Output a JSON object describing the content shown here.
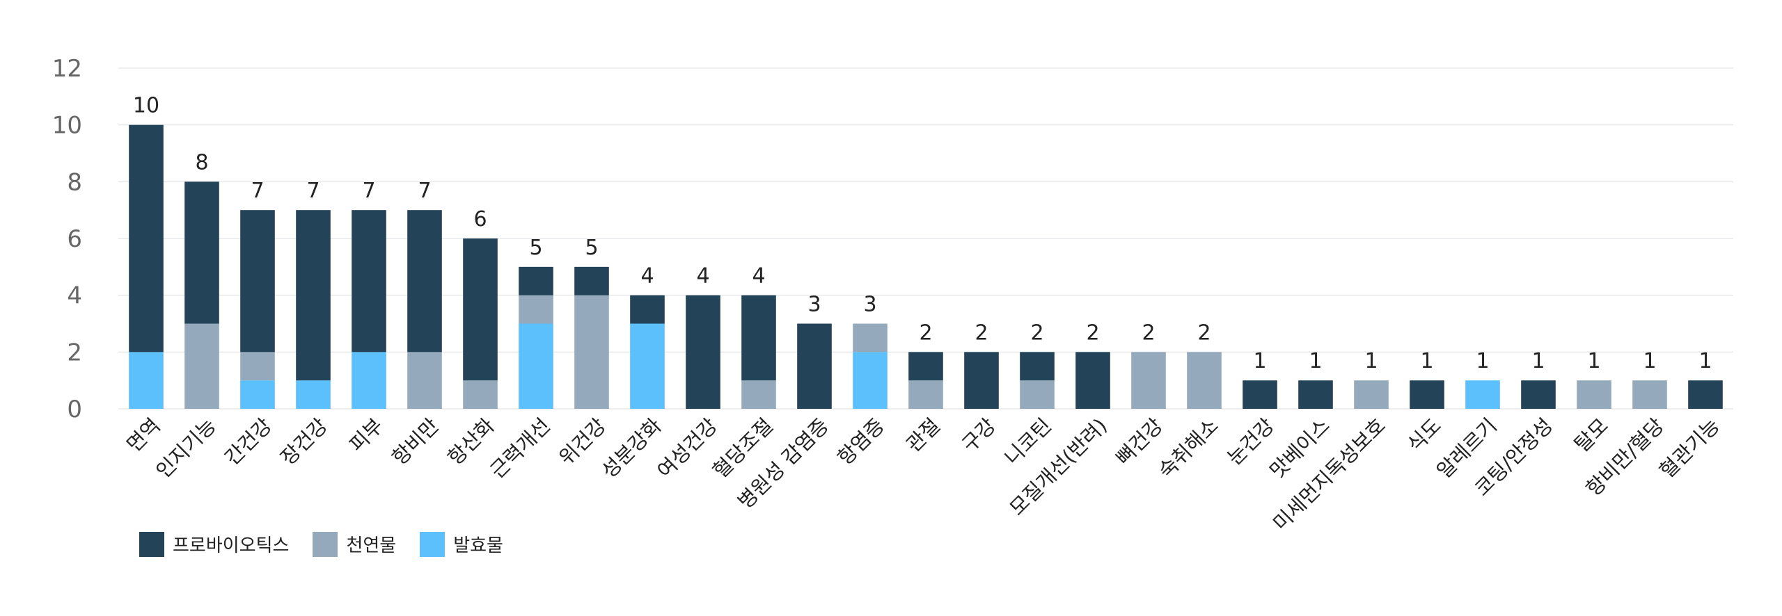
{
  "chart_data": {
    "type": "bar",
    "stacked": true,
    "title": "",
    "xlabel": "",
    "ylabel": "",
    "ylim": [
      0,
      12
    ],
    "yticks": [
      0,
      2,
      4,
      6,
      8,
      10,
      12
    ],
    "grid": true,
    "legend_position": "bottom-left",
    "categories": [
      "면역",
      "인지기능",
      "간건강",
      "장건강",
      "피부",
      "항비만",
      "항산화",
      "근력개선",
      "위건강",
      "성분강화",
      "여성건강",
      "혈당조절",
      "병원성 감염증",
      "항염증",
      "관절",
      "구강",
      "니코틴",
      "모질개선(반려)",
      "뼈건강",
      "숙취해소",
      "눈건강",
      "맛베이스",
      "미세먼지독성보호",
      "식도",
      "알레르기",
      "코팅/안정성",
      "탈모",
      "항비만/혈당",
      "혈관기능"
    ],
    "series": [
      {
        "name": "발효물",
        "color": "#5bc0fb",
        "values": [
          2,
          0,
          1,
          1,
          2,
          0,
          0,
          3,
          0,
          3,
          0,
          0,
          0,
          2,
          0,
          0,
          0,
          0,
          0,
          0,
          0,
          0,
          0,
          0,
          1,
          0,
          0,
          0,
          0
        ]
      },
      {
        "name": "천연물",
        "color": "#94a9bb",
        "values": [
          0,
          3,
          1,
          0,
          0,
          2,
          1,
          1,
          4,
          0,
          0,
          1,
          0,
          1,
          1,
          0,
          1,
          0,
          2,
          2,
          0,
          0,
          1,
          0,
          0,
          0,
          1,
          1,
          0
        ]
      },
      {
        "name": "프로바이오틱스",
        "color": "#234358",
        "values": [
          8,
          5,
          5,
          6,
          5,
          5,
          5,
          1,
          1,
          1,
          4,
          3,
          3,
          0,
          1,
          2,
          1,
          2,
          0,
          0,
          1,
          1,
          0,
          1,
          0,
          1,
          0,
          0,
          1
        ]
      }
    ],
    "totals": [
      "10",
      "8",
      "7",
      "7",
      "7",
      "7",
      "6",
      "5",
      "5",
      "4",
      "4",
      "4",
      "3",
      "3",
      "2",
      "2",
      "2",
      "2",
      "2",
      "2",
      "1",
      "1",
      "1",
      "1",
      "1",
      "1",
      "1",
      "1",
      "1"
    ]
  },
  "legend": [
    {
      "label": "프로바이오틱스",
      "color": "#234358"
    },
    {
      "label": "천연물",
      "color": "#94a9bb"
    },
    {
      "label": "발효물",
      "color": "#5bc0fb"
    }
  ]
}
